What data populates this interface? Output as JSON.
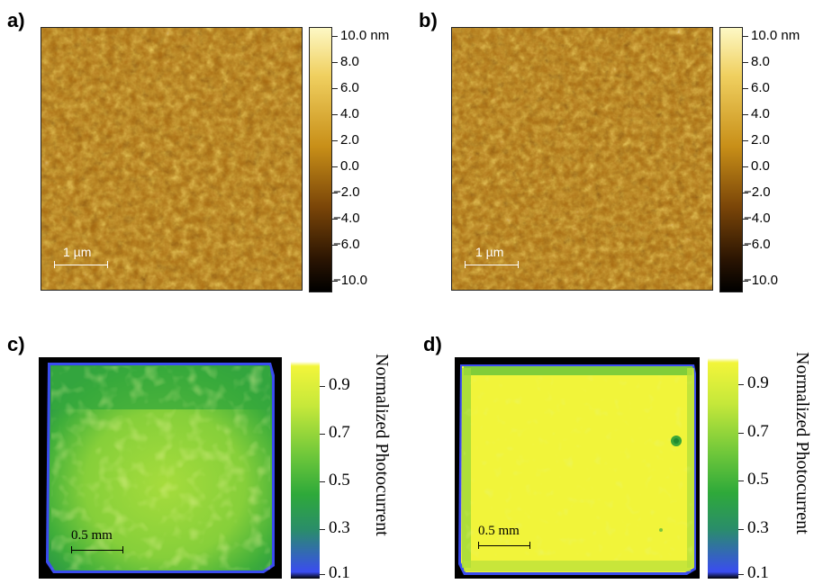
{
  "panels": {
    "a": {
      "label": "a)",
      "scalebar": "1 µm"
    },
    "b": {
      "label": "b)",
      "scalebar": "1 µm"
    },
    "c": {
      "label": "c)",
      "scalebar": "0.5 mm"
    },
    "d": {
      "label": "d)",
      "scalebar": "0.5 mm"
    }
  },
  "afm_colorbar": {
    "ticks": [
      "10.0 nm",
      "8.0",
      "6.0",
      "4.0",
      "2.0",
      "0.0",
      "−2.0",
      "−4.0",
      "−6.0",
      "−10.0"
    ],
    "colors": {
      "high": "#fdf8c4",
      "mid": "#b87612",
      "low": "#000000"
    }
  },
  "pc_colorbar": {
    "ticks": [
      "0.9",
      "0.7",
      "0.5",
      "0.3",
      "0.1"
    ],
    "label": "Normalized Photocurrent",
    "colors": {
      "top": "#ffffff",
      "high": "#f2f53a",
      "mid": "#3aa638",
      "low": "#3a4cf0"
    }
  },
  "colors": {
    "afm_base": "#a86a10",
    "pc_c_center": "#8fd23a",
    "pc_d_fill": "#f1f43a"
  }
}
